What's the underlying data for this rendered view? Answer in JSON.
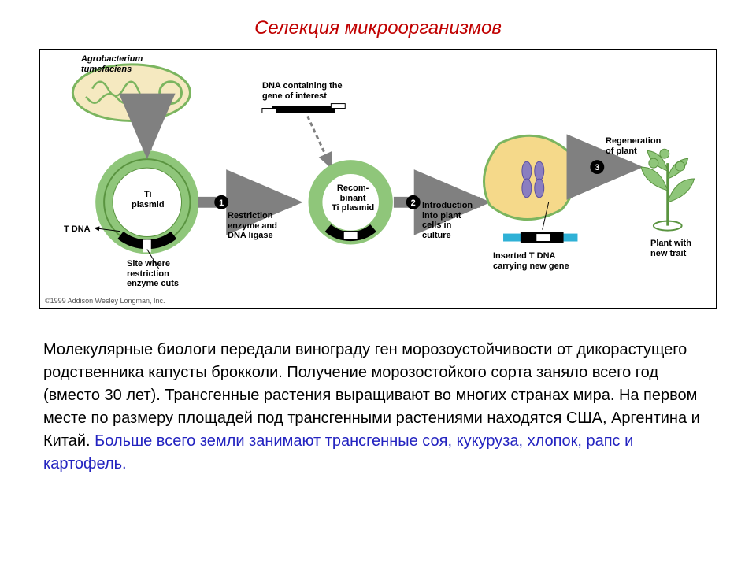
{
  "title": {
    "text": "Селекция микроорганизмов",
    "color": "#c00000",
    "fontsize": 24
  },
  "diagram": {
    "border_color": "#000000",
    "bg": "#ffffff",
    "colors": {
      "plasmid_ring": "#8fc67a",
      "plasmid_ring_dark": "#5a9440",
      "bacterium_outline": "#7bb55f",
      "bacterium_fill": "#f5e9c0",
      "cell_fill": "#f5d98a",
      "chromosome_fill": "#8a7ec0",
      "plant_fill": "#8fc67a",
      "tdna_blue": "#2fb1d6",
      "arrow": "#808080",
      "black": "#000000"
    },
    "labels": {
      "bacterium": "Agrobacterium\ntumefaciens",
      "ti_plasmid": "Ti\nplasmid",
      "t_dna": "T DNA",
      "cut_site": "Site where\nrestriction\nenzyme cuts",
      "gene": "DNA containing the\ngene of interest",
      "recomb": "Recom-\nbinant\nTi plasmid",
      "step1": "Restriction\nenzyme and\nDNA ligase",
      "step2": "Introduction\ninto plant\ncells in\nculture",
      "inserted": "Inserted T DNA\ncarrying new gene",
      "step3": "Regeneration\nof plant",
      "plant": "Plant with\nnew trait"
    },
    "step_numbers": [
      "1",
      "2",
      "3"
    ],
    "copyright": "©1999 Addison Wesley Longman, Inc."
  },
  "body": {
    "fontsize": 20,
    "color_main": "#000000",
    "color_hl": "#2323c0",
    "seg1": "Молекулярные биологи передали винограду ген морозоустойчивости от дикорастущего родственника капусты брокколи. Получение морозостойкого сорта заняло всего год (вместо 30 лет). Трансгенные растения выращивают во многих странах мира. На первом месте по размеру площадей под трансгенными растениями находятся США, Аргентина и Китай. ",
    "seg2": "Больше всего земли занимают трансгенные соя, кукуруза, хлопок, рапс и картофель."
  }
}
